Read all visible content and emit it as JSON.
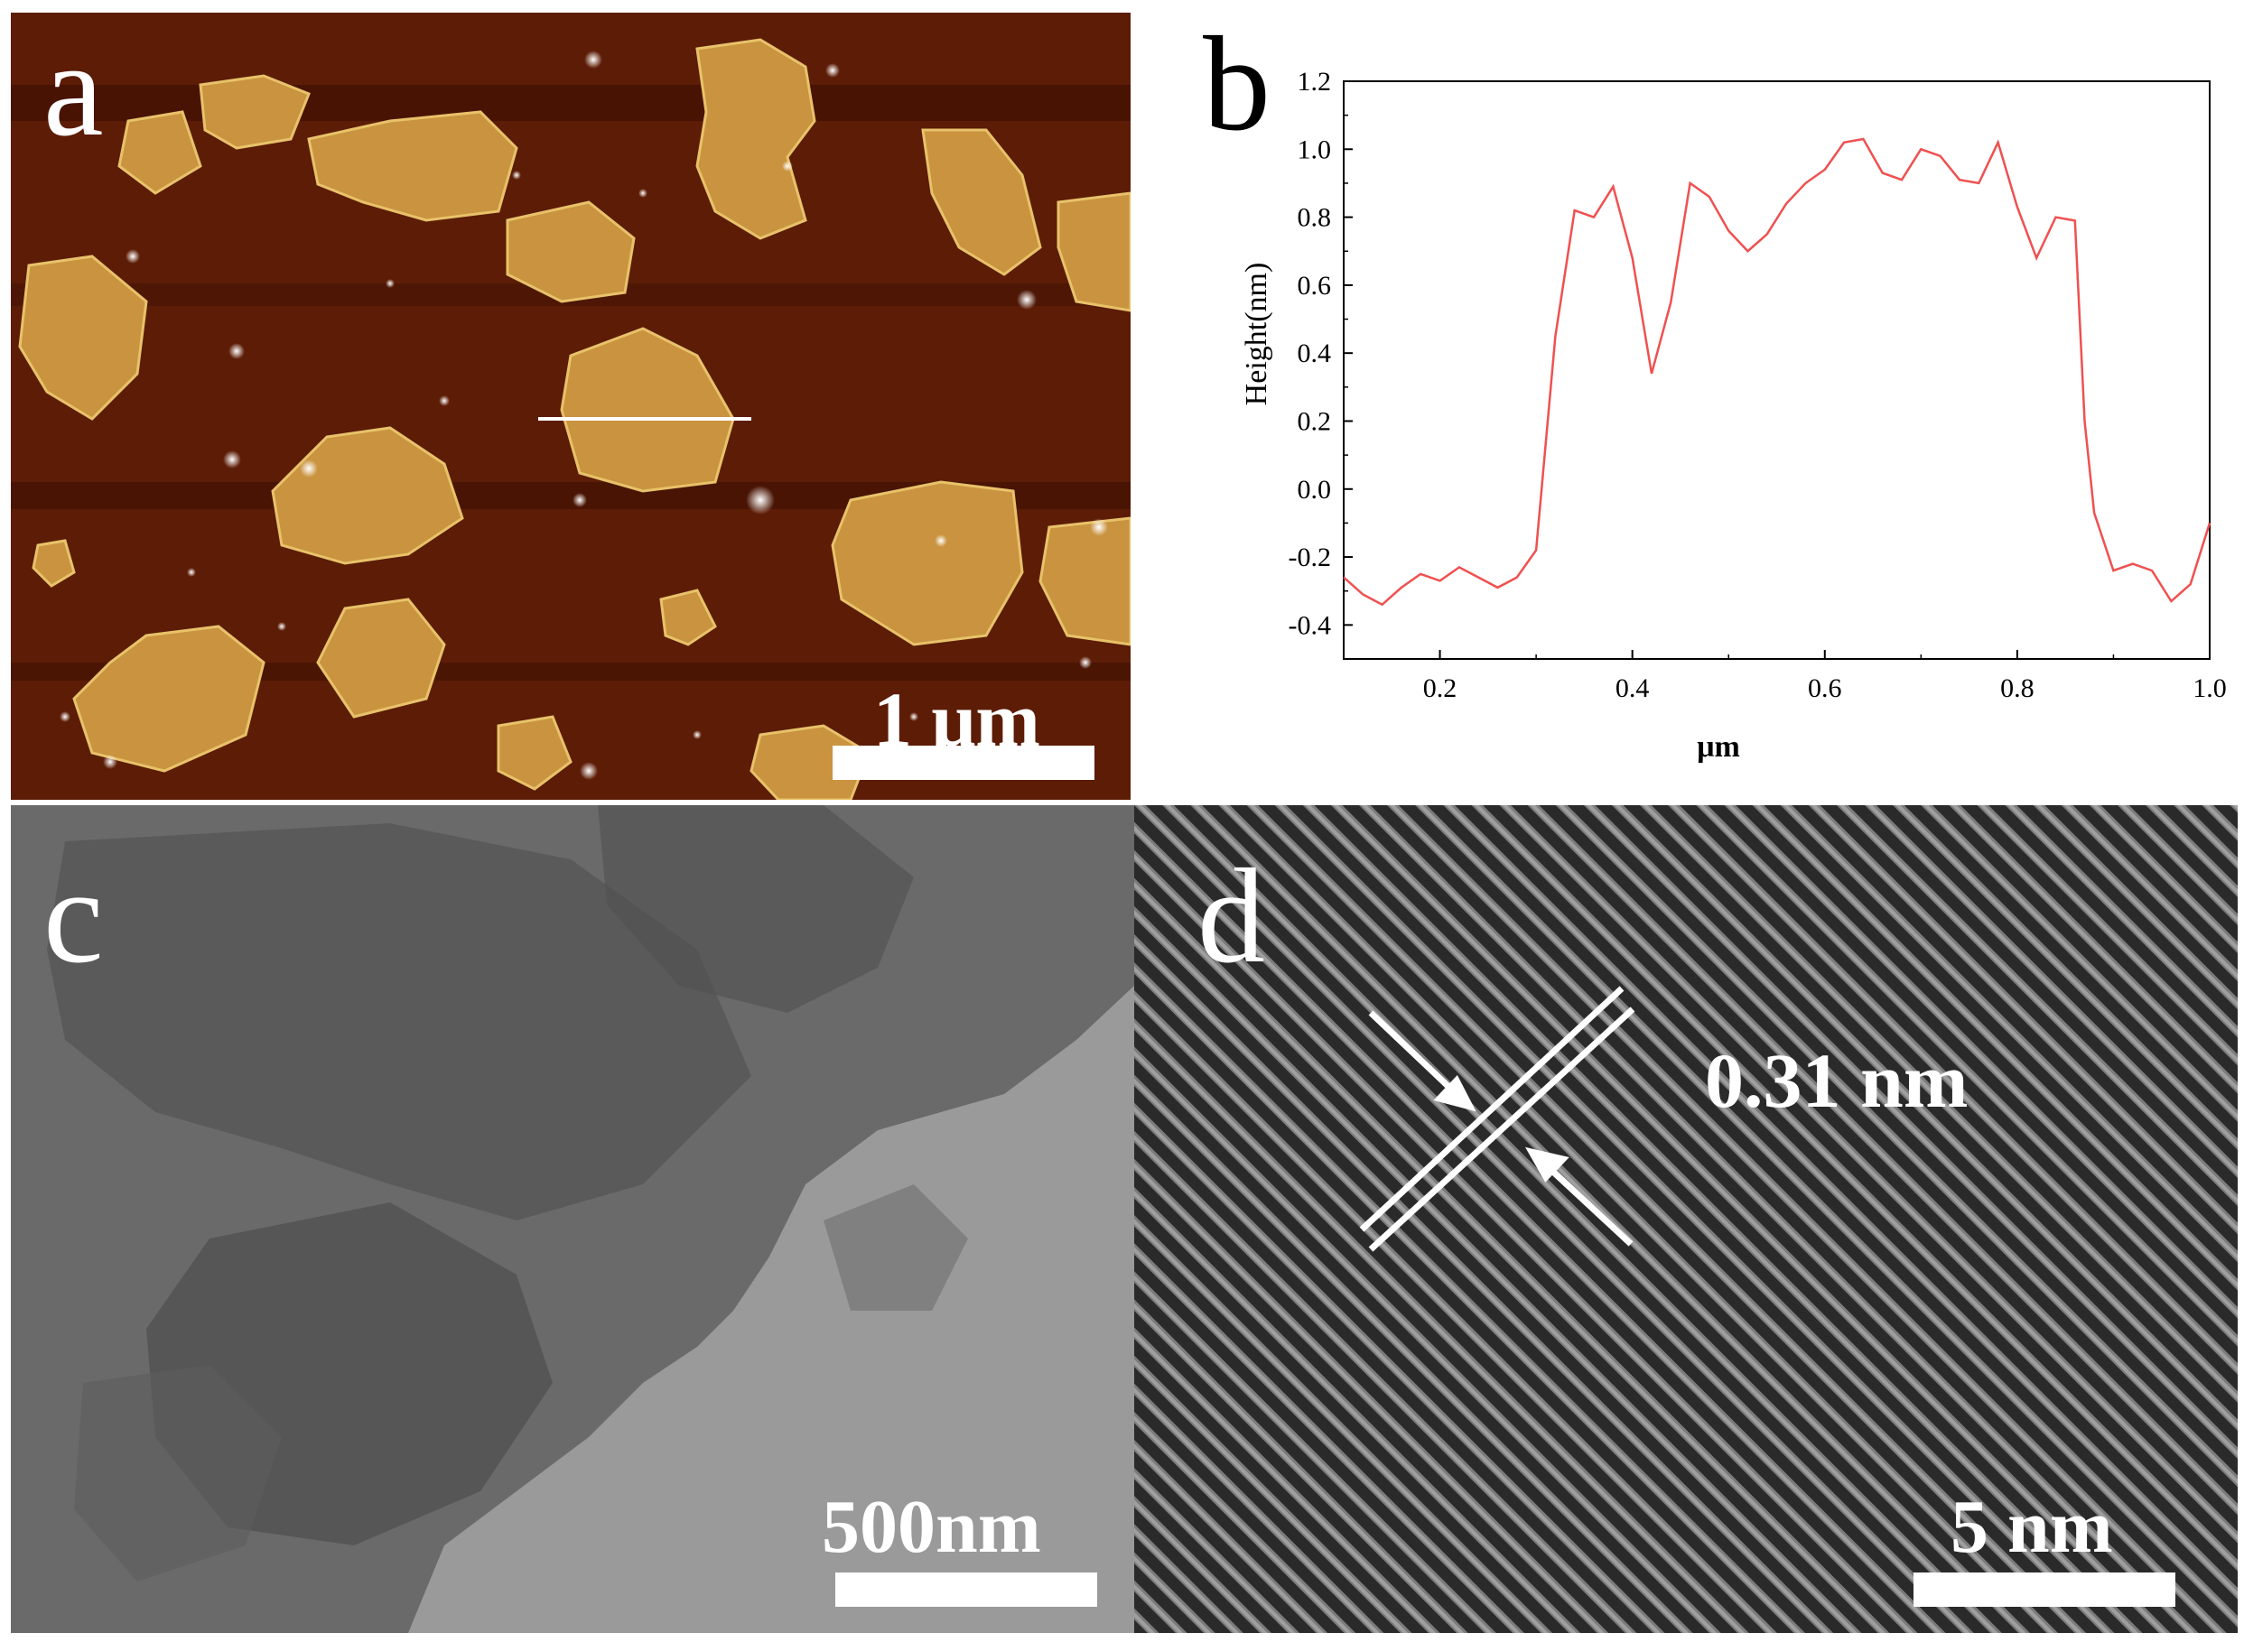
{
  "figure": {
    "panel_a": {
      "letter": "a",
      "scale_bar_label": "1 μm"
    },
    "panel_b": {
      "letter": "b"
    },
    "panel_c": {
      "letter": "c",
      "scale_bar_label": "500nm"
    },
    "panel_d": {
      "letter": "d",
      "scale_bar_label": "5 nm",
      "lattice_spacing_label": "0.31 nm"
    }
  },
  "chart_data": {
    "type": "line",
    "title": "",
    "xlabel": "μm",
    "ylabel": "Height(nm)",
    "xlim": [
      0.1,
      1.0
    ],
    "ylim": [
      -0.5,
      1.2
    ],
    "xticks": [
      "0.2",
      "0.4",
      "0.6",
      "0.8",
      "1.0"
    ],
    "yticks": [
      "-0.4",
      "-0.2",
      "0.0",
      "0.2",
      "0.4",
      "0.6",
      "0.8",
      "1.0",
      "1.2"
    ],
    "grid": false,
    "line_color": "#f05050",
    "series": [
      {
        "x": [
          0.1,
          0.12,
          0.14,
          0.16,
          0.18,
          0.2,
          0.22,
          0.24,
          0.26,
          0.28,
          0.3,
          0.32,
          0.34,
          0.36,
          0.38,
          0.4,
          0.42,
          0.44,
          0.46,
          0.48,
          0.5,
          0.52,
          0.54,
          0.56,
          0.58,
          0.6,
          0.62,
          0.64,
          0.66,
          0.68,
          0.7,
          0.72,
          0.74,
          0.76,
          0.78,
          0.8,
          0.82,
          0.84,
          0.86,
          0.87,
          0.88,
          0.9,
          0.92,
          0.94,
          0.96,
          0.98,
          1.0
        ],
        "y": [
          -0.26,
          -0.31,
          -0.34,
          -0.29,
          -0.25,
          -0.27,
          -0.23,
          -0.26,
          -0.29,
          -0.26,
          -0.18,
          0.45,
          0.82,
          0.8,
          0.89,
          0.68,
          0.34,
          0.55,
          0.9,
          0.86,
          0.76,
          0.7,
          0.75,
          0.84,
          0.9,
          0.94,
          1.02,
          1.03,
          0.93,
          0.91,
          1.0,
          0.98,
          0.91,
          0.9,
          1.02,
          0.83,
          0.68,
          0.8,
          0.79,
          0.2,
          -0.07,
          -0.24,
          -0.22,
          -0.24,
          -0.33,
          -0.28,
          -0.1
        ]
      }
    ]
  }
}
